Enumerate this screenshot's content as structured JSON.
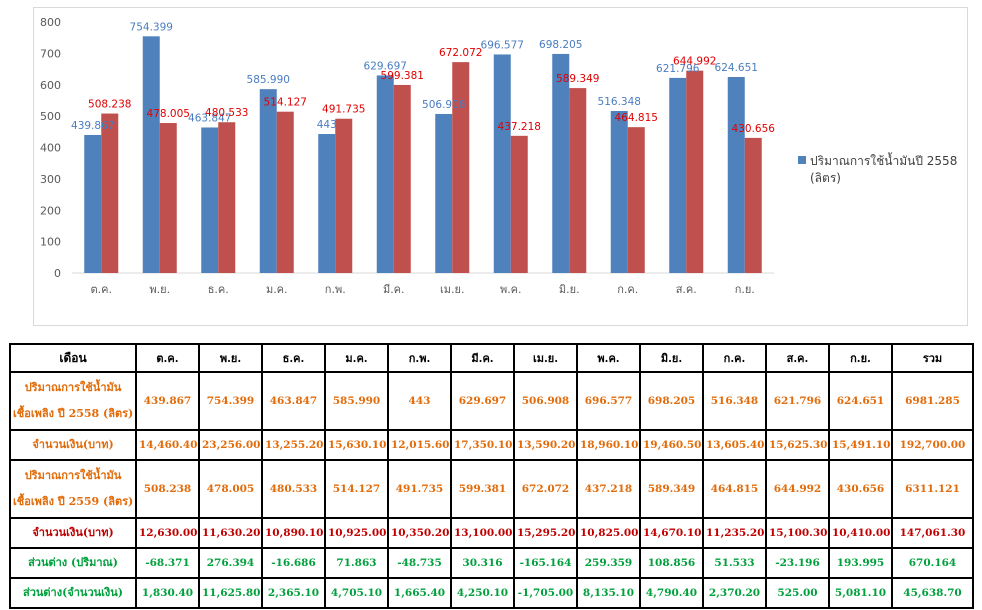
{
  "chart_data": {
    "type": "bar",
    "categories": [
      "ต.ค.",
      "พ.ย.",
      "ธ.ค.",
      "ม.ค.",
      "ก.พ.",
      "มี.ค.",
      "เม.ย.",
      "พ.ค.",
      "มิ.ย.",
      "ก.ค.",
      "ส.ค.",
      "ก.ย."
    ],
    "series": [
      {
        "name": "ปริมาณการใช้น้ำมันปี 2558 (ลิตร)",
        "color": "#4f81bd",
        "values": [
          439.867,
          754.399,
          463.847,
          585.99,
          443,
          629.697,
          506.908,
          696.577,
          698.205,
          516.348,
          621.796,
          624.651
        ],
        "labels": [
          "439.867",
          "754.399",
          "463.847",
          "585.990",
          "443",
          "629.697",
          "506.908",
          "696.577",
          "698.205",
          "516.348",
          "621.796",
          "624.651"
        ]
      },
      {
        "color": "#c0504d",
        "values": [
          508.238,
          478.005,
          480.533,
          514.127,
          491.735,
          599.381,
          672.072,
          437.218,
          589.349,
          464.815,
          644.992,
          430.656
        ],
        "labels": [
          "508.238",
          "478.005",
          "480.533",
          "514.127",
          "491.735",
          "599.381",
          "672.072",
          "437.218",
          "589.349",
          "464.815",
          "644.992",
          "430.656"
        ]
      }
    ],
    "ylim": [
      0,
      800
    ],
    "yticks": [
      "0",
      "100",
      "200",
      "300",
      "400",
      "500",
      "600",
      "700",
      "800"
    ],
    "grid": false,
    "legend": {
      "placement": "right",
      "lines": [
        "ปริมาณการใช้น้ำมันปี 2558",
        "(ลิตร)"
      ]
    }
  },
  "table": {
    "headers": [
      "เดือน",
      "ต.ค.",
      "พ.ย.",
      "ธ.ค.",
      "ม.ค.",
      "ก.พ.",
      "มี.ค.",
      "เม.ย.",
      "พ.ค.",
      "มิ.ย.",
      "ก.ค.",
      "ส.ค.",
      "ก.ย.",
      "รวม"
    ],
    "rows": [
      {
        "label": [
          "ปริมาณการใช้น้ำมัน",
          "เชื้อเพลิง ปี 2558 (ลิตร)"
        ],
        "color": "orange",
        "values": [
          "439.867",
          "754.399",
          "463.847",
          "585.990",
          "443",
          "629.697",
          "506.908",
          "696.577",
          "698.205",
          "516.348",
          "621.796",
          "624.651",
          "6981.285"
        ]
      },
      {
        "label": [
          "จำนวนเงิน(บาท)"
        ],
        "color": "orange",
        "values": [
          "14,460.40",
          "23,256.00",
          "13,255.20",
          "15,630.10",
          "12,015.60",
          "17,350.10",
          "13,590.20",
          "18,960.10",
          "19,460.50",
          "13,605.40",
          "15,625.30",
          "15,491.10",
          "192,700.00"
        ]
      },
      {
        "label": [
          "ปริมาณการใช้น้ำมัน",
          "เชื้อเพลิง ปี 2559 (ลิตร)"
        ],
        "color": "orange",
        "values": [
          "508.238",
          "478.005",
          "480.533",
          "514.127",
          "491.735",
          "599.381",
          "672.072",
          "437.218",
          "589.349",
          "464.815",
          "644.992",
          "430.656",
          "6311.121"
        ]
      },
      {
        "label": [
          "จำนวนเงิน(บาท)"
        ],
        "color": "red",
        "values": [
          "12,630.00",
          "11,630.20",
          "10,890.10",
          "10,925.00",
          "10,350.20",
          "13,100.00",
          "15,295.20",
          "10,825.00",
          "14,670.10",
          "11,235.20",
          "15,100.30",
          "10,410.00",
          "147,061.30"
        ]
      },
      {
        "label": [
          "ส่วนต่าง (ปริมาณ)"
        ],
        "color": "green",
        "values": [
          "-68.371",
          "276.394",
          "-16.686",
          "71.863",
          "-48.735",
          "30.316",
          "-165.164",
          "259.359",
          "108.856",
          "51.533",
          "-23.196",
          "193.995",
          "670.164"
        ]
      },
      {
        "label": [
          "ส่วนต่าง(จำนวนเงิน)"
        ],
        "color": "green",
        "values": [
          "1,830.40",
          "11,625.80",
          "2,365.10",
          "4,705.10",
          "1,665.40",
          "4,250.10",
          "-1,705.00",
          "8,135.10",
          "4,790.40",
          "2,370.20",
          "525.00",
          "5,081.10",
          "45,638.70"
        ]
      }
    ]
  }
}
